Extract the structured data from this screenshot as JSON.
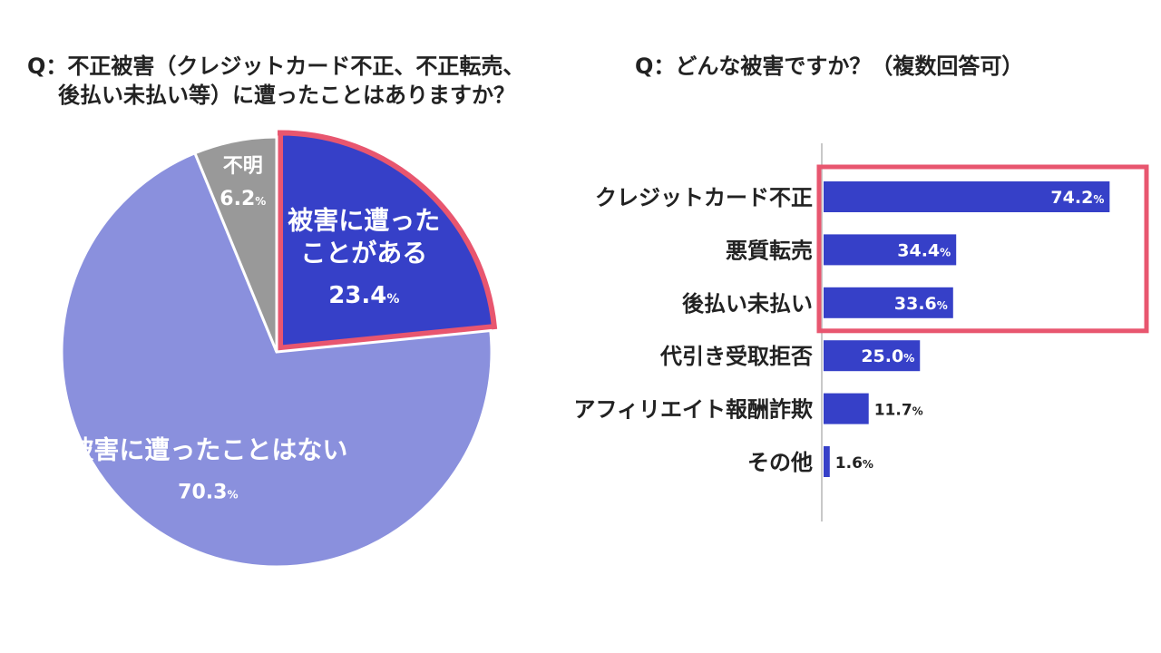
{
  "left_question_line1": "Q：不正被害（クレジットカード不正、不正転売、",
  "left_question_line2": "後払い未払い等）に遭ったことはありますか？",
  "right_question": "Q：どんな被害ですか？（複数回答可）",
  "percent_sign": "%",
  "chart_data": [
    {
      "type": "pie",
      "slices": [
        {
          "label": [
            "被害に遭った",
            "ことがある"
          ],
          "value": 23.4,
          "value_text": "23.4",
          "color": "#3640c8",
          "highlight": true
        },
        {
          "label": [
            "被害に遭ったことはない"
          ],
          "value": 70.3,
          "value_text": "70.3",
          "color": "#8a90dd",
          "highlight": false
        },
        {
          "label": [
            "不明"
          ],
          "value": 6.2,
          "value_text": "6.2",
          "color": "#999999",
          "highlight": false
        }
      ],
      "highlight_color": "#e8566f"
    },
    {
      "type": "bar",
      "orientation": "horizontal",
      "categories": [
        "クレジットカード不正",
        "悪質転売",
        "後払い未払い",
        "代引き受取拒否",
        "アフィリエイト報酬詐欺",
        "その他"
      ],
      "values": [
        74.2,
        34.4,
        33.6,
        25.0,
        11.7,
        1.6
      ],
      "value_texts": [
        "74.2",
        "34.4",
        "33.6",
        "25.0",
        "11.7",
        "1.6"
      ],
      "xlim": [
        0,
        80
      ],
      "bar_color": "#3640c8",
      "highlight_categories": [
        0,
        1,
        2
      ],
      "highlight_color": "#e8566f"
    }
  ]
}
